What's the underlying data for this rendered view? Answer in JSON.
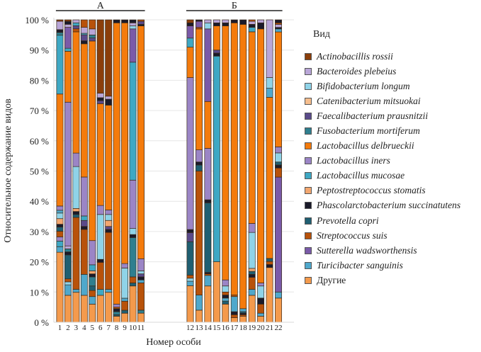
{
  "chart_data": {
    "type": "bar",
    "stacked": true,
    "title": "",
    "xlabel": "Номер особи",
    "ylabel": "Относительное содержание видов",
    "ylim": [
      0,
      100
    ],
    "yticks": [
      "0 %",
      "10 %",
      "20 %",
      "30 %",
      "40 %",
      "50 %",
      "60 %",
      "70 %",
      "80 %",
      "90 %",
      "100 %"
    ],
    "grid": true,
    "legend_title": "Вид",
    "legend_position": "right",
    "groups": [
      {
        "label": "А",
        "categories": [
          "1",
          "2",
          "3",
          "4",
          "5",
          "6",
          "7",
          "8",
          "9",
          "10",
          "11"
        ]
      },
      {
        "label": "Б",
        "categories": [
          "12",
          "13",
          "14",
          "15",
          "16",
          "17",
          "18",
          "19",
          "20",
          "21",
          "22"
        ]
      }
    ],
    "categories": [
      "1",
      "2",
      "3",
      "4",
      "5",
      "6",
      "7",
      "8",
      "9",
      "10",
      "11",
      "12",
      "13",
      "14",
      "15",
      "16",
      "17",
      "18",
      "19",
      "20",
      "21",
      "22"
    ],
    "species": [
      {
        "name": "Actinobacillis rossii",
        "color": "#8B3E0A"
      },
      {
        "name": "Bacteroides plebeius",
        "color": "#B9A6D8"
      },
      {
        "name": "Bifidobacterium longum",
        "color": "#8FD3E8"
      },
      {
        "name": "Catenibacterium mitsuokai",
        "color": "#F6BE8E"
      },
      {
        "name": "Faecalibacterium prausnitzii",
        "color": "#5A4A8A"
      },
      {
        "name": "Fusobacterium mortiferum",
        "color": "#2F7F8F"
      },
      {
        "name": "Lactobacillus delbrueckii",
        "color": "#F47B0C"
      },
      {
        "name": "Lactobacillus iners",
        "color": "#9B85C6"
      },
      {
        "name": "Lactobacillus mucosae",
        "color": "#3EA8C4"
      },
      {
        "name": "Peptostreptococcus stomatis",
        "color": "#F3A770"
      },
      {
        "name": "Phascolarctobacterium succinatutens",
        "color": "#1A1A2A"
      },
      {
        "name": "Prevotella copri",
        "color": "#1F5F72"
      },
      {
        "name": "Streptococcus suis",
        "color": "#B8520A"
      },
      {
        "name": "Sutterella wadsworthensis",
        "color": "#7A5AA8"
      },
      {
        "name": "Turicibacter sanguinis",
        "color": "#4FA8CC"
      },
      {
        "name": "Другие",
        "color": "#F49A4C",
        "upright": true
      }
    ],
    "series_values_note": "Each bar lists stacked segments from bottom (0%) to top (100%) as [species_index, percent]",
    "bars": [
      {
        "x": "1",
        "segments": [
          [
            15,
            25
          ],
          [
            14,
            2
          ],
          [
            8,
            2
          ],
          [
            7,
            1.5
          ],
          [
            12,
            2
          ],
          [
            11,
            1.5
          ],
          [
            10,
            1
          ],
          [
            9,
            2
          ],
          [
            2,
            2
          ],
          [
            14,
            1
          ],
          [
            7,
            1.5
          ],
          [
            6,
            40
          ],
          [
            8,
            21
          ],
          [
            5,
            1
          ],
          [
            10,
            1
          ],
          [
            1,
            3
          ],
          [
            0,
            0.5
          ]
        ]
      },
      {
        "x": "2",
        "segments": [
          [
            15,
            9
          ],
          [
            14,
            3.5
          ],
          [
            2,
            1
          ],
          [
            12,
            1
          ],
          [
            11,
            8
          ],
          [
            10,
            1
          ],
          [
            5,
            1
          ],
          [
            1,
            1
          ],
          [
            7,
            48
          ],
          [
            6,
            17
          ],
          [
            8,
            1
          ],
          [
            13,
            7
          ],
          [
            1,
            1
          ],
          [
            10,
            1
          ],
          [
            0,
            0.5
          ]
        ]
      },
      {
        "x": "3",
        "segments": [
          [
            15,
            10
          ],
          [
            14,
            1
          ],
          [
            12,
            24
          ],
          [
            11,
            1
          ],
          [
            10,
            1
          ],
          [
            9,
            1
          ],
          [
            2,
            14
          ],
          [
            7,
            4.5
          ],
          [
            6,
            40.5
          ],
          [
            12,
            1
          ],
          [
            4,
            1
          ],
          [
            8,
            1
          ],
          [
            1,
            1
          ]
        ]
      },
      {
        "x": "4",
        "segments": [
          [
            15,
            9
          ],
          [
            14,
            7
          ],
          [
            12,
            15
          ],
          [
            10,
            1
          ],
          [
            4,
            2
          ],
          [
            8,
            1.5
          ],
          [
            7,
            13
          ],
          [
            6,
            44.5
          ],
          [
            10,
            1
          ],
          [
            4,
            2
          ],
          [
            8,
            0.5
          ],
          [
            1,
            2
          ],
          [
            12,
            2.5
          ]
        ]
      },
      {
        "x": "5",
        "segments": [
          [
            15,
            6
          ],
          [
            14,
            2.5
          ],
          [
            12,
            2
          ],
          [
            11,
            1.5
          ],
          [
            5,
            3
          ],
          [
            10,
            1
          ],
          [
            9,
            1
          ],
          [
            8,
            2
          ],
          [
            7,
            8
          ],
          [
            6,
            66
          ],
          [
            4,
            1
          ],
          [
            5,
            1
          ],
          [
            1,
            2
          ],
          [
            12,
            3
          ]
        ]
      },
      {
        "x": "6",
        "segments": [
          [
            15,
            9
          ],
          [
            8,
            2
          ],
          [
            12,
            9
          ],
          [
            10,
            1
          ],
          [
            2,
            15
          ],
          [
            7,
            3
          ],
          [
            6,
            34
          ],
          [
            4,
            1
          ],
          [
            10,
            1
          ],
          [
            1,
            1.5
          ],
          [
            0,
            24.5
          ]
        ]
      },
      {
        "x": "7",
        "segments": [
          [
            15,
            10
          ],
          [
            14,
            1
          ],
          [
            12,
            19
          ],
          [
            10,
            1
          ],
          [
            4,
            1
          ],
          [
            9,
            2
          ],
          [
            2,
            2
          ],
          [
            7,
            1.5
          ],
          [
            6,
            35
          ],
          [
            10,
            2
          ],
          [
            1,
            1
          ],
          [
            0,
            25.5
          ]
        ]
      },
      {
        "x": "8",
        "segments": [
          [
            15,
            2
          ],
          [
            11,
            0.5
          ],
          [
            5,
            1
          ],
          [
            10,
            1
          ],
          [
            12,
            0.5
          ],
          [
            7,
            1
          ],
          [
            6,
            93
          ],
          [
            10,
            1
          ]
        ]
      },
      {
        "x": "9",
        "segments": [
          [
            15,
            3
          ],
          [
            11,
            1
          ],
          [
            12,
            3
          ],
          [
            14,
            1
          ],
          [
            2,
            10
          ],
          [
            7,
            1.5
          ],
          [
            6,
            80
          ],
          [
            10,
            1
          ]
        ]
      },
      {
        "x": "10",
        "segments": [
          [
            15,
            12
          ],
          [
            11,
            1
          ],
          [
            12,
            2
          ],
          [
            5,
            13
          ],
          [
            10,
            1
          ],
          [
            2,
            2
          ],
          [
            7,
            16
          ],
          [
            8,
            39
          ],
          [
            13,
            11
          ],
          [
            2,
            1
          ],
          [
            1,
            1
          ],
          [
            10,
            1
          ]
        ]
      },
      {
        "x": "11",
        "segments": [
          [
            15,
            3
          ],
          [
            5,
            1
          ],
          [
            12,
            9
          ],
          [
            14,
            1
          ],
          [
            10,
            1
          ],
          [
            4,
            1
          ],
          [
            2,
            1
          ],
          [
            7,
            4
          ],
          [
            6,
            77
          ],
          [
            10,
            0.5
          ],
          [
            4,
            1
          ],
          [
            12,
            0.5
          ]
        ]
      },
      {
        "x": "12",
        "segments": [
          [
            15,
            12
          ],
          [
            14,
            1.5
          ],
          [
            2,
            1
          ],
          [
            12,
            1
          ],
          [
            11,
            11
          ],
          [
            4,
            3
          ],
          [
            10,
            1
          ],
          [
            7,
            50
          ],
          [
            6,
            10
          ],
          [
            8,
            3
          ],
          [
            13,
            4
          ],
          [
            10,
            1
          ],
          [
            0,
            1
          ]
        ]
      },
      {
        "x": "13",
        "segments": [
          [
            15,
            4
          ],
          [
            14,
            5
          ],
          [
            12,
            41
          ],
          [
            11,
            2
          ],
          [
            10,
            1
          ],
          [
            7,
            4
          ],
          [
            6,
            40
          ],
          [
            12,
            0.5
          ],
          [
            13,
            2
          ],
          [
            10,
            0.5
          ]
        ]
      },
      {
        "x": "14",
        "segments": [
          [
            15,
            12
          ],
          [
            14,
            3.5
          ],
          [
            12,
            0.5
          ],
          [
            10,
            0.5
          ],
          [
            11,
            23
          ],
          [
            10,
            1
          ],
          [
            7,
            17
          ],
          [
            6,
            15.5
          ],
          [
            13,
            24
          ],
          [
            2,
            2
          ],
          [
            1,
            1
          ]
        ]
      },
      {
        "x": "15",
        "segments": [
          [
            15,
            20
          ],
          [
            8,
            68
          ],
          [
            10,
            1
          ],
          [
            4,
            1
          ],
          [
            6,
            8
          ],
          [
            10,
            1
          ],
          [
            1,
            1
          ]
        ]
      },
      {
        "x": "16",
        "segments": [
          [
            15,
            6
          ],
          [
            11,
            1
          ],
          [
            14,
            1
          ],
          [
            10,
            1
          ],
          [
            12,
            1
          ],
          [
            2,
            2
          ],
          [
            7,
            2
          ],
          [
            6,
            84
          ],
          [
            10,
            1
          ],
          [
            1,
            1
          ]
        ]
      },
      {
        "x": "17",
        "segments": [
          [
            15,
            1.5
          ],
          [
            12,
            1
          ],
          [
            10,
            1
          ],
          [
            14,
            5
          ],
          [
            12,
            0.5
          ],
          [
            6,
            90
          ],
          [
            10,
            1
          ]
        ]
      },
      {
        "x": "18",
        "segments": [
          [
            15,
            2
          ],
          [
            12,
            0.5
          ],
          [
            10,
            0.5
          ],
          [
            11,
            0.5
          ],
          [
            14,
            1
          ],
          [
            6,
            94
          ],
          [
            10,
            1.5
          ]
        ]
      },
      {
        "x": "19",
        "segments": [
          [
            15,
            9
          ],
          [
            14,
            2
          ],
          [
            12,
            4
          ],
          [
            10,
            1
          ],
          [
            11,
            1
          ],
          [
            9,
            1
          ],
          [
            2,
            12
          ],
          [
            7,
            3
          ],
          [
            6,
            64
          ],
          [
            8,
            1.5
          ],
          [
            10,
            1
          ],
          [
            1,
            1
          ],
          [
            12,
            0.5
          ]
        ]
      },
      {
        "x": "20",
        "segments": [
          [
            15,
            2
          ],
          [
            14,
            1
          ],
          [
            12,
            3
          ],
          [
            10,
            2
          ],
          [
            2,
            4
          ],
          [
            7,
            1
          ],
          [
            6,
            84
          ],
          [
            10,
            2
          ],
          [
            1,
            1
          ]
        ]
      },
      {
        "x": "21",
        "segments": [
          [
            15,
            18
          ],
          [
            10,
            1
          ],
          [
            12,
            1
          ],
          [
            11,
            1
          ],
          [
            6,
            53
          ],
          [
            14,
            3
          ],
          [
            2,
            3.5
          ],
          [
            1,
            19
          ]
        ]
      },
      {
        "x": "22",
        "segments": [
          [
            15,
            8
          ],
          [
            14,
            2
          ],
          [
            13,
            38
          ],
          [
            12,
            3
          ],
          [
            10,
            1
          ],
          [
            11,
            1
          ],
          [
            2,
            3
          ],
          [
            7,
            2
          ],
          [
            6,
            38
          ],
          [
            14,
            1
          ],
          [
            10,
            0.5
          ],
          [
            1,
            1
          ],
          [
            12,
            0.5
          ],
          [
            10,
            1
          ]
        ]
      }
    ]
  }
}
